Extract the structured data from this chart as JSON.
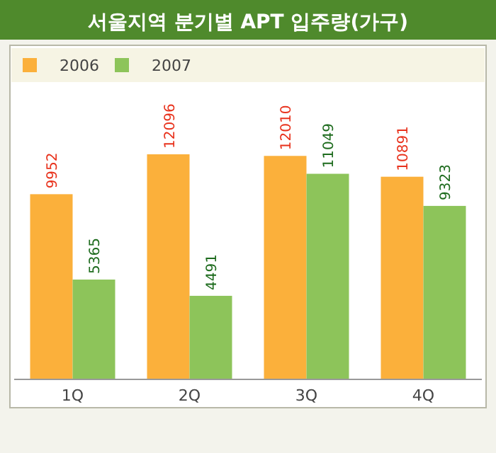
{
  "chart_data": {
    "type": "bar",
    "title": "서울지역 분기별 APT 입주량(가구)",
    "categories": [
      "1Q",
      "2Q",
      "3Q",
      "4Q"
    ],
    "series": [
      {
        "name": "2006",
        "color": "#fbb03b",
        "values": [
          9952,
          12096,
          12010,
          10891
        ]
      },
      {
        "name": "2007",
        "color": "#8dc45a",
        "values": [
          5365,
          4491,
          11049,
          9323
        ]
      }
    ],
    "data_labels": true,
    "legend": "top left",
    "grid": false
  }
}
